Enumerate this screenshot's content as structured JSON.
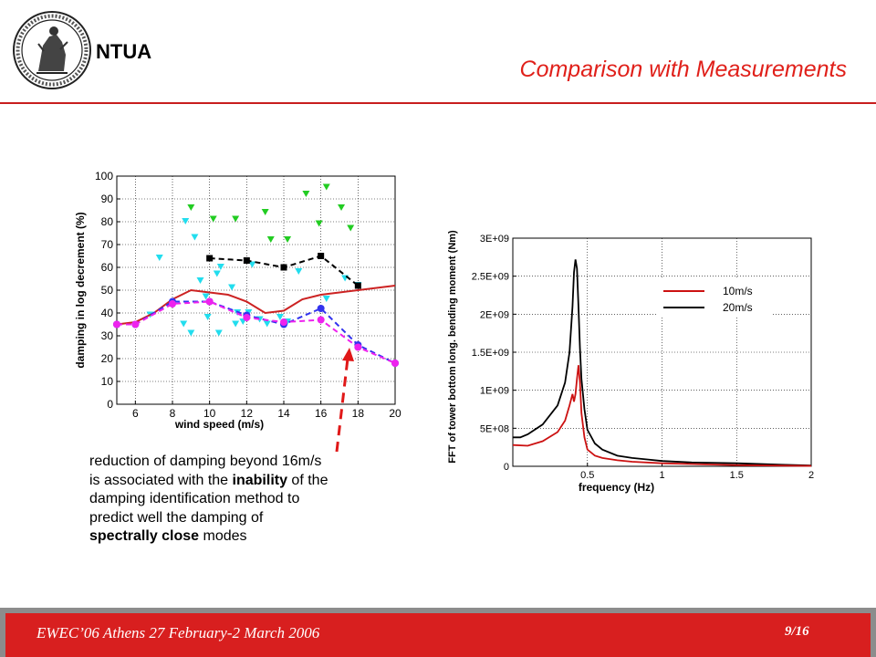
{
  "header": {
    "org": "NTUA",
    "title": "Comparison with Measurements"
  },
  "note": {
    "line1": "reduction of damping beyond 16m/s",
    "line2_pre": "is associated with the ",
    "line2_bold": "inability",
    "line2_post": " of the",
    "line3": "damping identification method to",
    "line4": "predict well the damping of",
    "line5_bold": "spectrally close",
    "line5_post": " modes"
  },
  "footer": {
    "text": "EWEC’06 Athens 27 February-2 March 2006",
    "page": "9/16"
  },
  "colors": {
    "title_red": "#e0201a",
    "footer_red": "#d81f1f",
    "arrow_red": "#e01818"
  },
  "chart_data": [
    {
      "type": "scatter",
      "title": "",
      "xlabel": "wind speed (m/s)",
      "ylabel": "damping in log decrement (%)",
      "xlim": [
        5,
        20
      ],
      "ylim": [
        0,
        100
      ],
      "xticks": [
        6,
        8,
        10,
        12,
        14,
        16,
        18,
        20
      ],
      "yticks": [
        0,
        10,
        20,
        30,
        40,
        50,
        60,
        70,
        80,
        90,
        100
      ],
      "series": [
        {
          "style": "scatter",
          "marker": "triangle-down",
          "color": "#22cc22",
          "x": [
            9,
            10.2,
            11.4,
            13,
            13.3,
            14.2,
            15.2,
            15.9,
            16.3,
            17.1,
            17.6
          ],
          "y": [
            86,
            81,
            81,
            84,
            72,
            72,
            92,
            79,
            95,
            86,
            77
          ]
        },
        {
          "style": "scatter",
          "marker": "triangle-down",
          "color": "#22ddee",
          "x": [
            7.3,
            8.7,
            9.2,
            9.5,
            8.6,
            9.9,
            10.4,
            10.6,
            11.2,
            11.5,
            11.8,
            12.3,
            12.7,
            13.1,
            13.8,
            14.8,
            16.3,
            17.3,
            18,
            6.8,
            9,
            9.8,
            10.5,
            11.4,
            12.1,
            14.2
          ],
          "y": [
            64,
            80,
            73,
            54,
            35,
            38,
            57,
            60,
            51,
            40,
            36,
            61,
            37,
            35,
            38,
            58,
            46,
            55,
            52,
            39,
            31,
            47,
            31,
            35,
            40,
            36
          ]
        },
        {
          "style": "line",
          "color": "#cc2222",
          "dash": false,
          "x": [
            5,
            6,
            7,
            8,
            9,
            10,
            11,
            12,
            13,
            14,
            15,
            16,
            17,
            18,
            19,
            20
          ],
          "y": [
            35,
            36,
            40,
            46,
            50,
            49,
            48,
            45,
            40,
            41,
            46,
            48,
            49,
            50,
            51,
            52
          ]
        },
        {
          "style": "line",
          "color": "#000000",
          "dash": true,
          "marker": "square",
          "x": [
            10,
            12,
            14,
            16,
            18
          ],
          "y": [
            64,
            63,
            60,
            65,
            52
          ]
        },
        {
          "style": "line",
          "color": "#3333ee",
          "dash": true,
          "marker": "circle",
          "x": [
            5,
            6,
            8,
            10,
            12,
            14,
            16,
            18,
            20
          ],
          "y": [
            35,
            35,
            45,
            45,
            39,
            35,
            42,
            26,
            18
          ]
        },
        {
          "style": "line",
          "color": "#ee22ee",
          "dash": true,
          "marker": "circle",
          "x": [
            5,
            6,
            8,
            10,
            12,
            14,
            16,
            18,
            20
          ],
          "y": [
            35,
            35,
            44,
            45,
            38,
            36,
            37,
            25,
            18
          ]
        }
      ]
    },
    {
      "type": "line",
      "title": "",
      "xlabel": "frequency (Hz)",
      "ylabel": "FFT of tower bottom long. bending moment (Nm)",
      "xlim": [
        0,
        2
      ],
      "ylim": [
        0,
        3000000000.0
      ],
      "xticks": [
        0.5,
        1,
        1.5,
        2
      ],
      "xtick_labels": [
        "0.5",
        "1",
        "1.5",
        "2"
      ],
      "yticks": [
        0,
        500000000.0,
        1000000000.0,
        1500000000.0,
        2000000000.0,
        2500000000.0,
        3000000000.0
      ],
      "ytick_labels": [
        "0",
        "5E+08",
        "1E+09",
        "1.5E+09",
        "2E+09",
        "2.5E+09",
        "3E+09"
      ],
      "legend_position": "top-right",
      "series": [
        {
          "name": "10m/s",
          "color": "#cc1111",
          "x": [
            0,
            0.1,
            0.2,
            0.3,
            0.35,
            0.38,
            0.4,
            0.41,
            0.42,
            0.43,
            0.44,
            0.45,
            0.46,
            0.48,
            0.5,
            0.55,
            0.6,
            0.7,
            0.8,
            1.0,
            1.2,
            1.5,
            1.8,
            2.0
          ],
          "y": [
            280000000.0,
            270000000.0,
            330000000.0,
            450000000.0,
            600000000.0,
            800000000.0,
            950000000.0,
            850000000.0,
            950000000.0,
            1150000000.0,
            1330000000.0,
            1100000000.0,
            700000000.0,
            380000000.0,
            220000000.0,
            140000000.0,
            110000000.0,
            80000000.0,
            60000000.0,
            40000000.0,
            30000000.0,
            15000000.0,
            8000000.0,
            5000000.0
          ]
        },
        {
          "name": "20m/s",
          "color": "#000000",
          "x": [
            0,
            0.05,
            0.1,
            0.2,
            0.3,
            0.35,
            0.38,
            0.4,
            0.41,
            0.42,
            0.43,
            0.44,
            0.45,
            0.46,
            0.48,
            0.5,
            0.55,
            0.6,
            0.7,
            0.8,
            0.9,
            1.0,
            1.2,
            1.5,
            1.8,
            2.0
          ],
          "y": [
            380000000.0,
            380000000.0,
            420000000.0,
            550000000.0,
            800000000.0,
            1100000000.0,
            1500000000.0,
            2100000000.0,
            2550000000.0,
            2720000000.0,
            2600000000.0,
            2100000000.0,
            1550000000.0,
            1150000000.0,
            750000000.0,
            480000000.0,
            300000000.0,
            220000000.0,
            140000000.0,
            110000000.0,
            90000000.0,
            70000000.0,
            50000000.0,
            40000000.0,
            20000000.0,
            10000000.0
          ]
        }
      ]
    }
  ]
}
